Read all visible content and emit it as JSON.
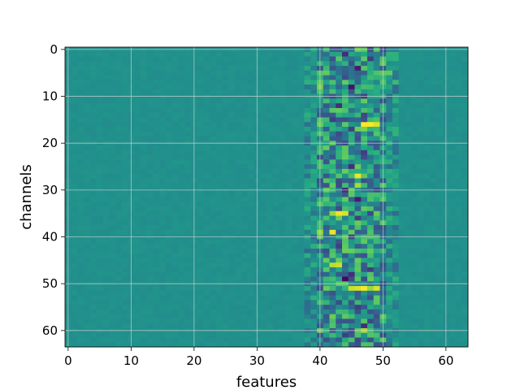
{
  "chart_data": {
    "type": "heatmap",
    "title": "",
    "xlabel": "features",
    "ylabel": "channels",
    "x_range": [
      0,
      63
    ],
    "y_range": [
      0,
      63
    ],
    "y_inverted": true,
    "x_ticks": [
      0,
      10,
      20,
      30,
      40,
      50,
      60
    ],
    "y_ticks": [
      0,
      10,
      20,
      30,
      40,
      50,
      60
    ],
    "grid": true,
    "colormap": "viridis",
    "value_range": [
      -1,
      1
    ],
    "n_rows": 64,
    "n_cols": 64,
    "baseline_value": 0.0,
    "active_column_range": [
      38,
      52
    ],
    "hotspots": [
      {
        "row": 0,
        "col": 46,
        "value": 0.55
      },
      {
        "row": 0,
        "col": 49,
        "value": 0.45
      },
      {
        "row": 1,
        "col": 44,
        "value": -0.7
      },
      {
        "row": 1,
        "col": 51,
        "value": 0.3
      },
      {
        "row": 2,
        "col": 42,
        "value": -0.5
      },
      {
        "row": 2,
        "col": 48,
        "value": -0.6
      },
      {
        "row": 4,
        "col": 41,
        "value": 0.35
      },
      {
        "row": 4,
        "col": 46,
        "value": -0.8
      },
      {
        "row": 5,
        "col": 50,
        "value": 0.5
      },
      {
        "row": 5,
        "col": 51,
        "value": 0.5
      },
      {
        "row": 6,
        "col": 49,
        "value": 0.3
      },
      {
        "row": 7,
        "col": 52,
        "value": 0.35
      },
      {
        "row": 8,
        "col": 40,
        "value": 0.6
      },
      {
        "row": 8,
        "col": 45,
        "value": -0.85
      },
      {
        "row": 8,
        "col": 47,
        "value": 0.4
      },
      {
        "row": 8,
        "col": 50,
        "value": 0.3
      },
      {
        "row": 9,
        "col": 42,
        "value": 0.4
      },
      {
        "row": 10,
        "col": 47,
        "value": -0.6
      },
      {
        "row": 11,
        "col": 41,
        "value": 0.4
      },
      {
        "row": 12,
        "col": 43,
        "value": -0.7
      },
      {
        "row": 12,
        "col": 44,
        "value": 0.3
      },
      {
        "row": 13,
        "col": 50,
        "value": 0.35
      },
      {
        "row": 14,
        "col": 47,
        "value": -0.55
      },
      {
        "row": 15,
        "col": 42,
        "value": -0.6
      },
      {
        "row": 16,
        "col": 47,
        "value": 1.0
      },
      {
        "row": 16,
        "col": 48,
        "value": 1.0
      },
      {
        "row": 16,
        "col": 49,
        "value": 0.9
      },
      {
        "row": 17,
        "col": 45,
        "value": -0.6
      },
      {
        "row": 17,
        "col": 46,
        "value": 0.55
      },
      {
        "row": 17,
        "col": 47,
        "value": 0.6
      },
      {
        "row": 18,
        "col": 52,
        "value": 0.3
      },
      {
        "row": 20,
        "col": 44,
        "value": -0.55
      },
      {
        "row": 22,
        "col": 40,
        "value": 0.4
      },
      {
        "row": 22,
        "col": 47,
        "value": -0.6
      },
      {
        "row": 23,
        "col": 43,
        "value": 0.3
      },
      {
        "row": 25,
        "col": 45,
        "value": -0.7
      },
      {
        "row": 26,
        "col": 48,
        "value": 0.35
      },
      {
        "row": 27,
        "col": 46,
        "value": 0.95
      },
      {
        "row": 27,
        "col": 45,
        "value": 0.4
      },
      {
        "row": 28,
        "col": 41,
        "value": 0.45
      },
      {
        "row": 29,
        "col": 46,
        "value": 0.75
      },
      {
        "row": 29,
        "col": 47,
        "value": 0.35
      },
      {
        "row": 30,
        "col": 44,
        "value": -0.7
      },
      {
        "row": 31,
        "col": 49,
        "value": 0.4
      },
      {
        "row": 32,
        "col": 46,
        "value": -0.8
      },
      {
        "row": 33,
        "col": 42,
        "value": 0.35
      },
      {
        "row": 34,
        "col": 47,
        "value": 0.5
      },
      {
        "row": 35,
        "col": 42,
        "value": 0.7
      },
      {
        "row": 35,
        "col": 43,
        "value": 0.95
      },
      {
        "row": 35,
        "col": 44,
        "value": 0.9
      },
      {
        "row": 36,
        "col": 46,
        "value": -0.6
      },
      {
        "row": 37,
        "col": 40,
        "value": 0.4
      },
      {
        "row": 38,
        "col": 48,
        "value": 0.35
      },
      {
        "row": 39,
        "col": 40,
        "value": 0.7
      },
      {
        "row": 39,
        "col": 42,
        "value": 0.95
      },
      {
        "row": 40,
        "col": 45,
        "value": -0.55
      },
      {
        "row": 41,
        "col": 49,
        "value": 0.35
      },
      {
        "row": 42,
        "col": 43,
        "value": -0.6
      },
      {
        "row": 44,
        "col": 47,
        "value": -0.5
      },
      {
        "row": 45,
        "col": 43,
        "value": 0.55
      },
      {
        "row": 46,
        "col": 43,
        "value": 0.85
      },
      {
        "row": 46,
        "col": 42,
        "value": 0.8
      },
      {
        "row": 47,
        "col": 48,
        "value": -0.6
      },
      {
        "row": 48,
        "col": 45,
        "value": -0.7
      },
      {
        "row": 49,
        "col": 44,
        "value": -0.95
      },
      {
        "row": 49,
        "col": 41,
        "value": 0.35
      },
      {
        "row": 50,
        "col": 50,
        "value": -0.55
      },
      {
        "row": 51,
        "col": 45,
        "value": 0.85
      },
      {
        "row": 51,
        "col": 46,
        "value": 0.9
      },
      {
        "row": 51,
        "col": 47,
        "value": 1.0
      },
      {
        "row": 51,
        "col": 48,
        "value": 0.7
      },
      {
        "row": 51,
        "col": 49,
        "value": 0.9
      },
      {
        "row": 52,
        "col": 42,
        "value": -0.5
      },
      {
        "row": 54,
        "col": 40,
        "value": 0.4
      },
      {
        "row": 55,
        "col": 46,
        "value": -0.6
      },
      {
        "row": 56,
        "col": 44,
        "value": 0.35
      },
      {
        "row": 57,
        "col": 49,
        "value": -0.5
      },
      {
        "row": 58,
        "col": 50,
        "value": 0.35
      },
      {
        "row": 59,
        "col": 47,
        "value": -0.7
      },
      {
        "row": 60,
        "col": 47,
        "value": 0.75
      },
      {
        "row": 60,
        "col": 48,
        "value": 0.4
      },
      {
        "row": 61,
        "col": 44,
        "value": -0.6
      },
      {
        "row": 62,
        "col": 45,
        "value": 0.4
      },
      {
        "row": 63,
        "col": 49,
        "value": -0.5
      }
    ]
  }
}
